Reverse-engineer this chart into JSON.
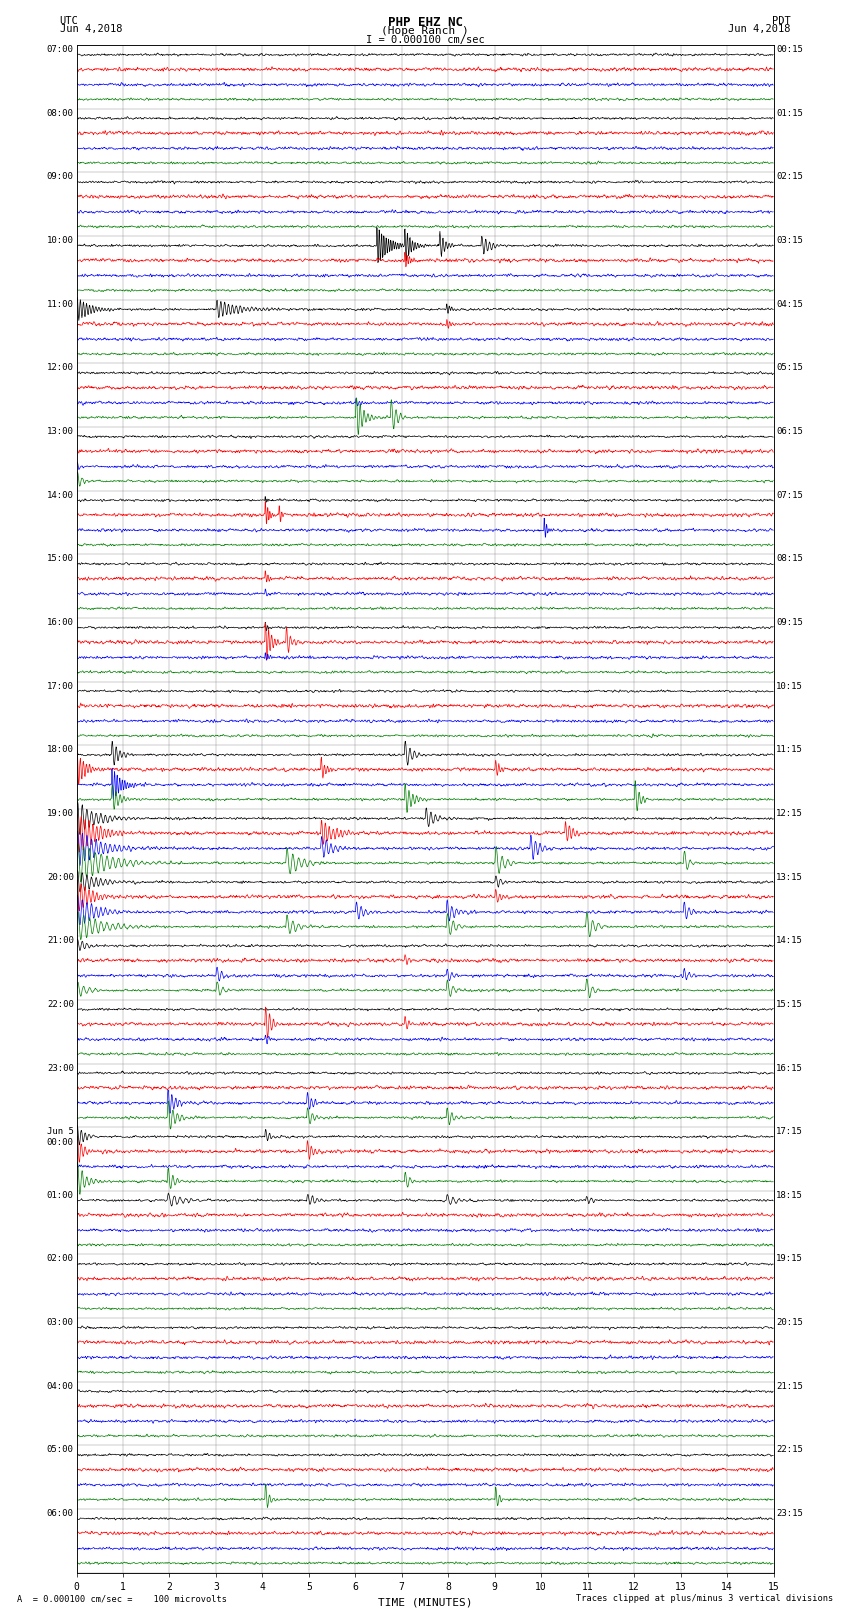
{
  "title_line1": "PHP EHZ NC",
  "title_line2": "(Hope Ranch )",
  "title_line3": "I = 0.000100 cm/sec",
  "label_utc": "UTC",
  "label_date_left": "Jun 4,2018",
  "label_pdt": "PDT",
  "label_date_right": "Jun 4,2018",
  "xlabel": "TIME (MINUTES)",
  "footer_left": "A  = 0.000100 cm/sec =    100 microvolts",
  "footer_right": "Traces clipped at plus/minus 3 vertical divisions",
  "left_times": [
    "07:00",
    "08:00",
    "09:00",
    "10:00",
    "11:00",
    "12:00",
    "13:00",
    "14:00",
    "15:00",
    "16:00",
    "17:00",
    "18:00",
    "19:00",
    "20:00",
    "21:00",
    "22:00",
    "23:00",
    "Jun 5\n00:00",
    "01:00",
    "02:00",
    "03:00",
    "04:00",
    "05:00",
    "06:00"
  ],
  "right_times": [
    "00:15",
    "01:15",
    "02:15",
    "03:15",
    "04:15",
    "05:15",
    "06:15",
    "07:15",
    "08:15",
    "09:15",
    "10:15",
    "11:15",
    "12:15",
    "13:15",
    "14:15",
    "15:15",
    "16:15",
    "17:15",
    "18:15",
    "19:15",
    "20:15",
    "21:15",
    "22:15",
    "23:15"
  ],
  "num_rows": 24,
  "minutes_per_row": 15,
  "bg_color": "#ffffff",
  "trace_colors": [
    "#000000",
    "#ff0000",
    "#0000ff",
    "#008000"
  ],
  "trace_lw": 0.5,
  "noise_amps": [
    0.008,
    0.012,
    0.01,
    0.008
  ],
  "seed": 42
}
